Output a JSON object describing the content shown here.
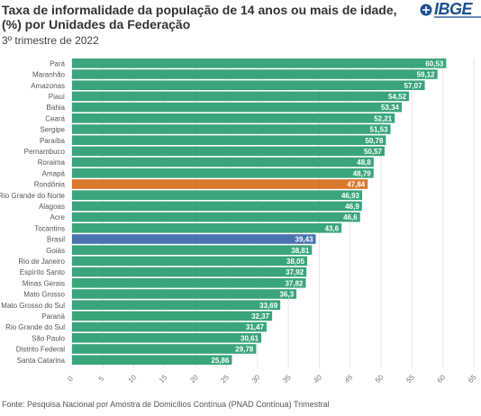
{
  "header": {
    "title": "Taxa de informalidade da população de 14 anos ou mais de idade, (%) por Unidades da Federação",
    "subtitle": "3º trimestre de 2022",
    "logo_text": "IBGE"
  },
  "footer": {
    "source": "Fonte: Pesquisa Nacional por Amostra de Domicílios Contínua (PNAD Contínua) Trimestral"
  },
  "colors": {
    "default_bar": "#3aa57a",
    "highlight_rondonia": "#d9772b",
    "highlight_brasil": "#4a72b0",
    "background": "#ffffff",
    "grid": "#e6e6e6"
  },
  "chart_data": {
    "type": "bar",
    "orientation": "horizontal",
    "title": "Taxa de informalidade da população de 14 anos ou mais de idade, (%) por Unidades da Federação",
    "subtitle": "3º trimestre de 2022",
    "categories": [
      "Pará",
      "Maranhão",
      "Amazonas",
      "Piauí",
      "Bahia",
      "Ceará",
      "Sergipe",
      "Paraíba",
      "Pernambuco",
      "Roraima",
      "Amapá",
      "Rondônia",
      "Rio Grande do Norte",
      "Alagoas",
      "Acre",
      "Tocantins",
      "Brasil",
      "Goiás",
      "Rio de Janeiro",
      "Espírito Santo",
      "Minas Gerais",
      "Mato Grosso",
      "Mato Grosso do Sul",
      "Paraná",
      "Rio Grande do Sul",
      "São Paulo",
      "Distrito Federal",
      "Santa Catarina"
    ],
    "values": [
      60.53,
      59.12,
      57.07,
      54.52,
      53.34,
      52.21,
      51.53,
      50.78,
      50.57,
      48.8,
      48.79,
      47.84,
      46.93,
      46.9,
      46.6,
      43.6,
      39.43,
      38.81,
      38.05,
      37.92,
      37.82,
      36.3,
      33.69,
      32.37,
      31.47,
      30.61,
      29.78,
      25.86
    ],
    "value_labels": [
      "60,53",
      "59,12",
      "57,07",
      "54,52",
      "53,34",
      "52,21",
      "51,53",
      "50,78",
      "50,57",
      "48,8",
      "48,79",
      "47,84",
      "46,93",
      "46,9",
      "46,6",
      "43,6",
      "39,43",
      "38,81",
      "38,05",
      "37,92",
      "37,82",
      "36,3",
      "33,69",
      "32,37",
      "31,47",
      "30,61",
      "29,78",
      "25,86"
    ],
    "highlights": {
      "Rondônia": "orange",
      "Brasil": "blue"
    },
    "xlim": [
      0,
      65
    ],
    "x_ticks": [
      0,
      5,
      10,
      15,
      20,
      25,
      30,
      35,
      40,
      45,
      50,
      55,
      60,
      65
    ],
    "grid": true,
    "legend": "none"
  }
}
